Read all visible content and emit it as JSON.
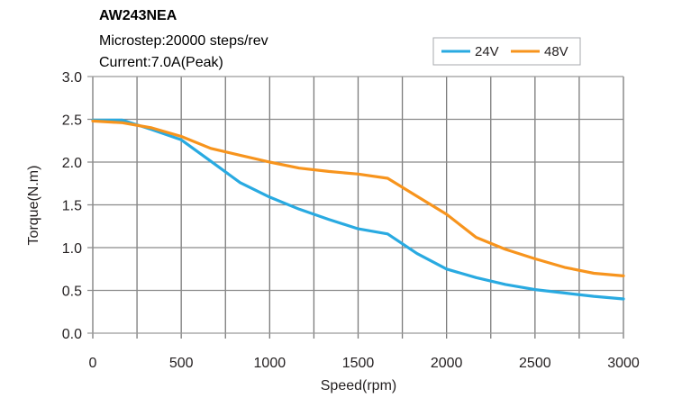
{
  "chart_data": {
    "type": "line",
    "title": "AW243NEA",
    "subtitle_lines": [
      "Microstep:20000 steps/rev",
      "Current:7.0A(Peak)"
    ],
    "xlabel": "Speed(rpm)",
    "ylabel": "Torque(N.m)",
    "xlim": [
      0,
      3000
    ],
    "ylim": [
      0,
      3.0
    ],
    "x_ticks": [
      0,
      500,
      1000,
      1500,
      2000,
      2500,
      3000
    ],
    "x_tick_labels": [
      "0",
      "500",
      "1000",
      "1500",
      "2000",
      "2500",
      "3000"
    ],
    "y_ticks": [
      0,
      0.5,
      1.0,
      1.5,
      2.0,
      2.5,
      3.0
    ],
    "y_tick_labels": [
      "0.0",
      "0.5",
      "1.0",
      "1.5",
      "2.0",
      "2.5",
      "3.0"
    ],
    "x_grid_step": 250,
    "grid": true,
    "legend_position": "top-right",
    "x": [
      0,
      167,
      333,
      500,
      667,
      833,
      1000,
      1167,
      1333,
      1500,
      1667,
      1833,
      2000,
      2167,
      2333,
      2500,
      2667,
      2833,
      3000
    ],
    "series": [
      {
        "name": "24V",
        "color": "#29aae1",
        "values": [
          2.49,
          2.49,
          2.38,
          2.26,
          2.01,
          1.76,
          1.59,
          1.45,
          1.33,
          1.22,
          1.16,
          0.93,
          0.75,
          0.65,
          0.57,
          0.51,
          0.47,
          0.43,
          0.4
        ]
      },
      {
        "name": "48V",
        "color": "#f7941d",
        "values": [
          2.48,
          2.46,
          2.4,
          2.3,
          2.16,
          2.08,
          2.0,
          1.93,
          1.89,
          1.86,
          1.81,
          1.6,
          1.39,
          1.12,
          0.98,
          0.87,
          0.77,
          0.7,
          0.67
        ]
      }
    ]
  }
}
